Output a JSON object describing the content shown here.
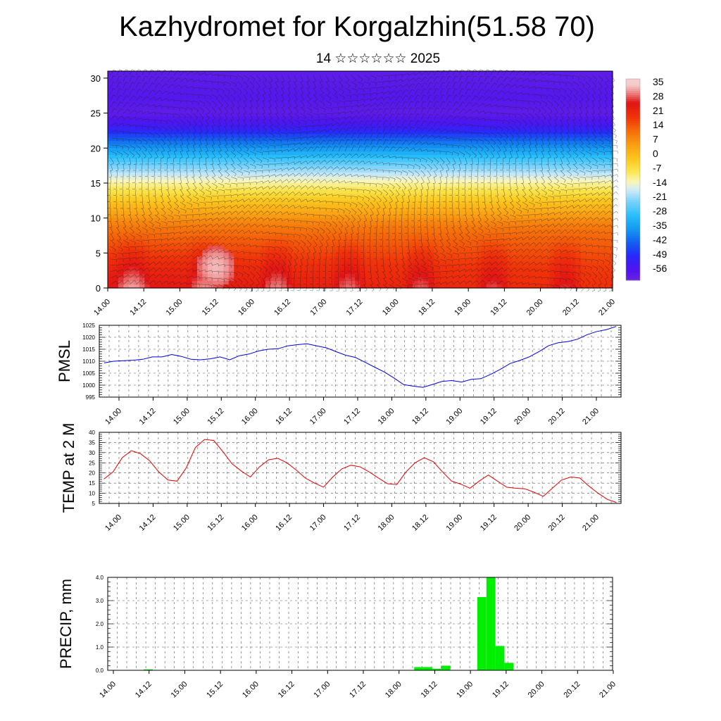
{
  "title": "Kazhydromet for Korgalzhin(51.58 70)",
  "subtitle": "14 ☆☆☆☆☆☆ 2025",
  "time_labels": [
    "14.00",
    "14.12",
    "15.00",
    "15.12",
    "16.00",
    "16.12",
    "17.00",
    "17.12",
    "18.00",
    "18.12",
    "19.00",
    "19.12",
    "20.00",
    "20.12",
    "21.00"
  ],
  "colors": {
    "pmsl_line": "#0000dd",
    "temp_line": "#dd0000",
    "precip_bar": "#00ee00",
    "grid": "#555555"
  },
  "chart_data": [
    {
      "type": "heatmap",
      "name": "temperature-wind-cross-section",
      "title": "",
      "xlabel": "",
      "ylabel": "",
      "y_ticks": [
        0,
        5,
        10,
        15,
        20,
        25,
        30
      ],
      "ylim": [
        0,
        31
      ],
      "x_categories": [
        "14.00",
        "14.12",
        "15.00",
        "15.12",
        "16.00",
        "16.12",
        "17.00",
        "17.12",
        "18.00",
        "18.12",
        "19.00",
        "19.12",
        "20.00",
        "20.12",
        "21.00"
      ],
      "colorbar_labels": [
        "35",
        "28",
        "21",
        "14",
        "7",
        "0",
        "-7",
        "-14",
        "-21",
        "-28",
        "-35",
        "-42",
        "-49",
        "-56"
      ],
      "colorbar_range": [
        -60,
        40
      ],
      "level_temperature_profile": [
        [
          0,
          28
        ],
        [
          3,
          24
        ],
        [
          6,
          18
        ],
        [
          9,
          12
        ],
        [
          12,
          2
        ],
        [
          15,
          -10
        ],
        [
          18,
          -24
        ],
        [
          21,
          -40
        ],
        [
          23,
          -52
        ],
        [
          25,
          -58
        ],
        [
          27,
          -56
        ],
        [
          31,
          -58
        ]
      ],
      "warm_core": {
        "x": "15.12",
        "y": 3,
        "value": 36
      },
      "wind_barbs": true
    },
    {
      "type": "line",
      "name": "pmsl",
      "ylabel": "PMSL",
      "ylim": [
        995,
        1025
      ],
      "y_ticks": [
        995,
        1000,
        1005,
        1010,
        1015,
        1020,
        1025
      ],
      "x_step_hours": 3,
      "values": [
        1009.3,
        1010.0,
        1010.2,
        1010.4,
        1010.8,
        1011.8,
        1011.8,
        1012.8,
        1012.0,
        1010.8,
        1010.6,
        1011.0,
        1011.8,
        1010.6,
        1012.3,
        1013.0,
        1014.3,
        1015.0,
        1015.2,
        1016.4,
        1016.9,
        1017.3,
        1016.4,
        1015.6,
        1014.0,
        1012.5,
        1011.6,
        1009.6,
        1007.5,
        1005.5,
        1003.0,
        1000.2,
        999.6,
        999.1,
        1000.3,
        1001.6,
        1001.9,
        1001.3,
        1002.4,
        1002.7,
        1004.5,
        1006.6,
        1009.0,
        1010.3,
        1011.8,
        1014.0,
        1016.5,
        1017.7,
        1018.2,
        1019.2,
        1021.1,
        1022.4,
        1023.2,
        1024.5
      ]
    },
    {
      "type": "line",
      "name": "temp-2m",
      "ylabel": "TEMP at 2 M",
      "ylim": [
        5,
        40
      ],
      "y_ticks": [
        5,
        10,
        15,
        20,
        25,
        30,
        35,
        40
      ],
      "x_step_hours": 3,
      "values": [
        17.0,
        20.5,
        27.5,
        31.0,
        29.5,
        26.0,
        20.5,
        16.5,
        16.0,
        22.5,
        32.5,
        36.5,
        36.0,
        30.5,
        24.5,
        21.0,
        18.0,
        23.0,
        26.5,
        27.2,
        25.0,
        21.5,
        17.5,
        15.0,
        13.0,
        18.0,
        22.0,
        23.8,
        23.0,
        20.5,
        17.5,
        14.7,
        14.3,
        20.5,
        25.0,
        27.5,
        25.5,
        20.5,
        16.0,
        14.5,
        12.5,
        16.0,
        19.0,
        16.0,
        13.0,
        12.5,
        12.2,
        10.5,
        8.5,
        12.5,
        16.5,
        18.0,
        17.5,
        13.5,
        10.0,
        7.0,
        5.5
      ]
    },
    {
      "type": "bar",
      "name": "precip",
      "ylabel": "PRECIP, mm",
      "ylim": [
        0,
        4
      ],
      "y_ticks": [
        "0.0",
        "1.0",
        "2.0",
        "3.0",
        "4.0"
      ],
      "x_step_hours": 3,
      "values": [
        0,
        0,
        0,
        0,
        0.04,
        0,
        0,
        0,
        0,
        0,
        0,
        0,
        0,
        0,
        0,
        0,
        0,
        0,
        0,
        0,
        0,
        0,
        0,
        0,
        0,
        0,
        0,
        0,
        0,
        0,
        0,
        0,
        0,
        0,
        0.14,
        0.14,
        0.07,
        0.2,
        0,
        0,
        0,
        3.15,
        4.0,
        1.05,
        0.32,
        0,
        0,
        0,
        0,
        0,
        0,
        0,
        0,
        0,
        0,
        0
      ]
    }
  ]
}
